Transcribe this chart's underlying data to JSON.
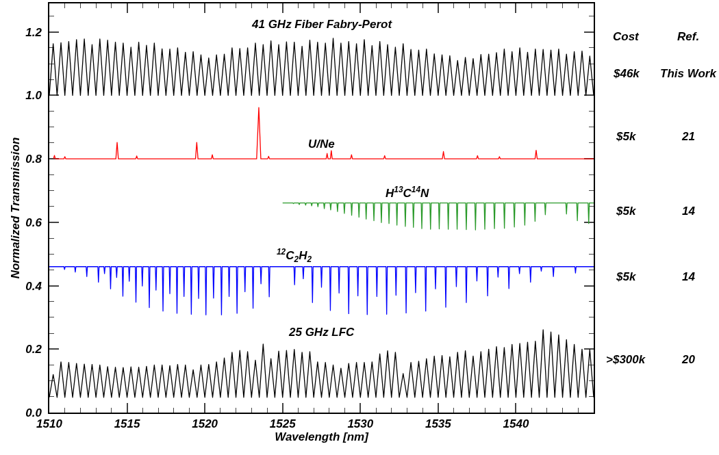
{
  "chart_data": {
    "type": "line",
    "xlabel": "Wavelength [nm]",
    "ylabel": "Normalized Transmission",
    "xlim": [
      1510,
      1545
    ],
    "ylim": [
      0,
      1.29
    ],
    "xticks": [
      1510,
      {
        "value": 1511,
        "label": null
      },
      {
        "value": 1512,
        "label": null
      },
      {
        "value": 1513,
        "label": null
      },
      {
        "value": 1514,
        "label": null
      },
      1515,
      {
        "value": 1516,
        "label": null
      },
      {
        "value": 1517,
        "label": null
      },
      {
        "value": 1518,
        "label": null
      },
      {
        "value": 1519,
        "label": null
      },
      1520,
      {
        "value": 1521,
        "label": null
      },
      {
        "value": 1522,
        "label": null
      },
      {
        "value": 1523,
        "label": null
      },
      {
        "value": 1524,
        "label": null
      },
      1525,
      {
        "value": 1526,
        "label": null
      },
      {
        "value": 1527,
        "label": null
      },
      {
        "value": 1528,
        "label": null
      },
      {
        "value": 1529,
        "label": null
      },
      1530,
      {
        "value": 1531,
        "label": null
      },
      {
        "value": 1532,
        "label": null
      },
      {
        "value": 1533,
        "label": null
      },
      {
        "value": 1534,
        "label": null
      },
      1535,
      {
        "value": 1536,
        "label": null
      },
      {
        "value": 1537,
        "label": null
      },
      {
        "value": 1538,
        "label": null
      },
      {
        "value": 1539,
        "label": null
      },
      1540,
      {
        "value": 1541,
        "label": null
      },
      {
        "value": 1542,
        "label": null
      },
      {
        "value": 1543,
        "label": null
      },
      {
        "value": 1544,
        "label": null
      }
    ],
    "yticks": [
      {
        "value": 0,
        "label": "0.0"
      },
      {
        "value": 0.05,
        "label": null
      },
      {
        "value": 0.1,
        "label": null
      },
      {
        "value": 0.15,
        "label": null
      },
      {
        "value": 0.2,
        "label": "0.2"
      },
      {
        "value": 0.25,
        "label": null
      },
      {
        "value": 0.3,
        "label": null
      },
      {
        "value": 0.35,
        "label": null
      },
      {
        "value": 0.4,
        "label": "0.4"
      },
      {
        "value": 0.45,
        "label": null
      },
      {
        "value": 0.5,
        "label": null
      },
      {
        "value": 0.55,
        "label": null
      },
      {
        "value": 0.6,
        "label": "0.6"
      },
      {
        "value": 0.65,
        "label": null
      },
      {
        "value": 0.7,
        "label": null
      },
      {
        "value": 0.75,
        "label": null
      },
      {
        "value": 0.8,
        "label": "0.8"
      },
      {
        "value": 0.85,
        "label": null
      },
      {
        "value": 0.9,
        "label": null
      },
      {
        "value": 0.95,
        "label": null
      },
      {
        "value": 1.0,
        "label": "1.0"
      },
      {
        "value": 1.05,
        "label": null
      },
      {
        "value": 1.1,
        "label": null
      },
      {
        "value": 1.15,
        "label": null
      },
      {
        "value": 1.2,
        "label": "1.2"
      },
      {
        "value": 1.25,
        "label": null
      }
    ],
    "grid": false,
    "marker": "none",
    "line_style": "solid",
    "annotations": [
      "Cost",
      "Ref.",
      "$46k",
      "This Work",
      "$5k",
      "21",
      "$5k",
      "14",
      "$5k",
      "14",
      ">$300k",
      "20"
    ],
    "x": [
      1510,
      1510.25,
      1510.5,
      1510.75,
      1511,
      1511.25,
      1511.5,
      1511.75,
      1512,
      1512.25,
      1512.5,
      1512.75,
      1513,
      1513.25,
      1513.5,
      1513.75,
      1514,
      1514.25,
      1514.5,
      1514.75,
      1515,
      1515.25,
      1515.5,
      1515.75,
      1516,
      1516.25,
      1516.5,
      1516.75,
      1517,
      1517.25,
      1517.5,
      1517.75,
      1518,
      1518.25,
      1518.5,
      1518.75,
      1519,
      1519.25,
      1519.5,
      1519.75,
      1520,
      1520.25,
      1520.5,
      1520.75,
      1521,
      1521.25,
      1521.5,
      1521.75,
      1522,
      1522.25,
      1522.5,
      1522.75,
      1523,
      1523.25,
      1523.5,
      1523.75,
      1524,
      1524.25,
      1524.5,
      1524.75,
      1525,
      1525.25,
      1525.5,
      1525.75,
      1526,
      1526.25,
      1526.5,
      1526.75,
      1527,
      1527.25,
      1527.5,
      1527.75,
      1528,
      1528.25,
      1528.5,
      1528.75,
      1529,
      1529.25,
      1529.5,
      1529.75,
      1530,
      1530.25,
      1530.5,
      1530.75,
      1531,
      1531.25,
      1531.5,
      1531.75,
      1532,
      1532.25,
      1532.5,
      1532.75,
      1533,
      1533.25,
      1533.5,
      1533.75,
      1534,
      1534.25,
      1534.5,
      1534.75,
      1535,
      1535.25,
      1535.5,
      1535.75,
      1536,
      1536.25,
      1536.5,
      1536.75,
      1537,
      1537.25,
      1537.5,
      1537.75,
      1538,
      1538.25,
      1538.5,
      1538.75,
      1539,
      1539.25,
      1539.5,
      1539.75,
      1540,
      1540.25,
      1540.5,
      1540.75,
      1541,
      1541.25,
      1541.5,
      1541.75,
      1542,
      1542.25,
      1542.5,
      1542.75,
      1543,
      1543.25,
      1543.5,
      1543.75,
      1544,
      1544.25,
      1544.5,
      1544.75,
      1545
    ],
    "series": [
      {
        "name": "41 GHz Fiber Fabry-Perot",
        "color": "#000000",
        "values": [
          1,
          1.163,
          1,
          1.166,
          1,
          1.17,
          1,
          1.176,
          1,
          1.178,
          1,
          1.16,
          1,
          1.178,
          1,
          1.174,
          1,
          1.168,
          1,
          1.165,
          1,
          1.152,
          1,
          1.168,
          1,
          1.158,
          1,
          1.165,
          1,
          1.147,
          1,
          1.146,
          1,
          1.15,
          1,
          1.136,
          1,
          1.138,
          1,
          1.128,
          1,
          1.118,
          1,
          1.128,
          1,
          1.13,
          1,
          1.15,
          1,
          1.148,
          1,
          1.15,
          1,
          1.165,
          1,
          1.16,
          1,
          1.172,
          1,
          1.16,
          1,
          1.169,
          1,
          1.168,
          1,
          1.155,
          1,
          1.174,
          1,
          1.168,
          1,
          1.165,
          1,
          1.18,
          1,
          1.165,
          1,
          1.17,
          1,
          1.163,
          1,
          1.176,
          1,
          1.157,
          1,
          1.17,
          1,
          1.16,
          1,
          1.152,
          1,
          1.163,
          1,
          1.145,
          1,
          1.143,
          1,
          1.146,
          1,
          1.131,
          1,
          1.128,
          1,
          1.125,
          1,
          1.11,
          1,
          1.12,
          1,
          1.116,
          1,
          1.129,
          1,
          1.13,
          1,
          1.135,
          1,
          1.146,
          1,
          1.138,
          1,
          1.15,
          1,
          1.136,
          1,
          1.146,
          1,
          1.145,
          1,
          1.143,
          1,
          1.146,
          1,
          1.13,
          1,
          1.138,
          1,
          1.14,
          1,
          1.124,
          1
        ]
      },
      {
        "name": "U/Ne",
        "color": "#ff0000",
        "x": [
          1510.27,
          1510.33,
          1510.39,
          1510.94,
          1511.0,
          1511.06,
          1514.28,
          1514.36,
          1514.44,
          1515.56,
          1515.62,
          1515.68,
          1519.4,
          1519.48,
          1519.56,
          1520.42,
          1520.48,
          1520.54,
          1523.33,
          1523.47,
          1523.6,
          1524.04,
          1524.1,
          1524.16,
          1527.8,
          1527.86,
          1527.92,
          1528.07,
          1528.13,
          1528.19,
          1529.37,
          1529.43,
          1529.49,
          1531.5,
          1531.56,
          1531.62,
          1535.27,
          1535.34,
          1535.41,
          1537.47,
          1537.53,
          1537.59,
          1538.88,
          1538.94,
          1539.0,
          1541.23,
          1541.3,
          1541.37,
          1545
        ],
        "values": [
          0.8,
          0.811,
          0.8,
          0.8,
          0.807,
          0.8,
          0.8,
          0.852,
          0.8,
          0.8,
          0.809,
          0.8,
          0.8,
          0.852,
          0.8,
          0.8,
          0.813,
          0.8,
          0.8,
          0.962,
          0.8,
          0.8,
          0.808,
          0.8,
          0.8,
          0.817,
          0.8,
          0.8,
          0.826,
          0.8,
          0.8,
          0.813,
          0.8,
          0.8,
          0.81,
          0.8,
          0.8,
          0.823,
          0.8,
          0.8,
          0.81,
          0.8,
          0.8,
          0.807,
          0.8,
          0.8,
          0.827,
          0.8,
          0.8
        ]
      },
      {
        "name": "H$^{13}$C$^{14}$N",
        "color": "#2a9a2a",
        "x": [
          1525,
          1525.66,
          1525.7,
          1525.74,
          1526.03,
          1526.07,
          1526.11,
          1526.44,
          1526.48,
          1526.52,
          1526.83,
          1526.87,
          1526.91,
          1527.23,
          1527.27,
          1527.31,
          1527.64,
          1527.68,
          1527.72,
          1528.05,
          1528.09,
          1528.13,
          1528.49,
          1528.53,
          1528.57,
          1528.93,
          1528.97,
          1529.01,
          1529.4,
          1529.44,
          1529.48,
          1529.87,
          1529.91,
          1529.95,
          1530.33,
          1530.37,
          1530.41,
          1530.83,
          1530.87,
          1530.91,
          1531.31,
          1531.35,
          1531.39,
          1531.8,
          1531.84,
          1531.88,
          1532.31,
          1532.35,
          1532.39,
          1532.85,
          1532.89,
          1532.93,
          1533.37,
          1533.41,
          1533.45,
          1533.91,
          1533.95,
          1533.99,
          1534.47,
          1534.51,
          1534.55,
          1535.03,
          1535.07,
          1535.11,
          1535.61,
          1535.65,
          1535.69,
          1536.18,
          1536.22,
          1536.26,
          1536.77,
          1536.81,
          1536.85,
          1537.36,
          1537.4,
          1537.44,
          1537.96,
          1538.0,
          1538.04,
          1538.58,
          1538.62,
          1538.66,
          1539.22,
          1539.26,
          1539.3,
          1539.86,
          1539.9,
          1539.94,
          1540.53,
          1540.57,
          1540.61,
          1541.19,
          1541.23,
          1541.27,
          1541.85,
          1541.89,
          1541.93,
          1543.21,
          1543.25,
          1543.29,
          1543.91,
          1543.95,
          1543.99,
          1544.64,
          1544.68,
          1544.72,
          1545
        ],
        "values": [
          0.661,
          0.661,
          0.659,
          0.661,
          0.661,
          0.656,
          0.661,
          0.661,
          0.654,
          0.661,
          0.661,
          0.652,
          0.661,
          0.661,
          0.649,
          0.661,
          0.661,
          0.643,
          0.661,
          0.661,
          0.639,
          0.661,
          0.661,
          0.634,
          0.661,
          0.661,
          0.628,
          0.661,
          0.661,
          0.622,
          0.661,
          0.661,
          0.616,
          0.661,
          0.661,
          0.61,
          0.661,
          0.661,
          0.605,
          0.661,
          0.661,
          0.599,
          0.661,
          0.661,
          0.596,
          0.661,
          0.661,
          0.591,
          0.661,
          0.661,
          0.587,
          0.661,
          0.661,
          0.584,
          0.661,
          0.661,
          0.58,
          0.661,
          0.661,
          0.578,
          0.661,
          0.661,
          0.579,
          0.661,
          0.661,
          0.578,
          0.661,
          0.661,
          0.578,
          0.661,
          0.661,
          0.577,
          0.661,
          0.661,
          0.576,
          0.661,
          0.661,
          0.578,
          0.661,
          0.661,
          0.58,
          0.661,
          0.661,
          0.581,
          0.661,
          0.661,
          0.585,
          0.661,
          0.661,
          0.591,
          0.661,
          0.661,
          0.603,
          0.661,
          0.661,
          0.624,
          0.661,
          0.661,
          0.626,
          0.661,
          0.661,
          0.605,
          0.661,
          0.661,
          0.596,
          0.661,
          0.661
        ]
      },
      {
        "name": "$^{12}$C$_{2}$H$_{2}$",
        "color": "#0000ff",
        "x": [
          1510,
          1510.94,
          1510.98,
          1511.02,
          1511.63,
          1511.67,
          1511.71,
          1512.37,
          1512.41,
          1512.45,
          1513.12,
          1513.16,
          1513.2,
          1513.51,
          1513.55,
          1513.59,
          1513.9,
          1513.94,
          1513.98,
          1514.29,
          1514.33,
          1514.37,
          1514.69,
          1514.73,
          1514.77,
          1515.1,
          1515.14,
          1515.18,
          1515.53,
          1515.57,
          1515.61,
          1515.94,
          1515.98,
          1516.02,
          1516.39,
          1516.43,
          1516.47,
          1516.82,
          1516.86,
          1516.9,
          1517.27,
          1517.31,
          1517.35,
          1517.71,
          1517.75,
          1517.79,
          1518.17,
          1518.21,
          1518.25,
          1518.62,
          1518.66,
          1518.7,
          1519.09,
          1519.13,
          1519.17,
          1519.56,
          1519.6,
          1519.64,
          1520.03,
          1520.07,
          1520.11,
          1520.52,
          1520.56,
          1520.6,
          1521.03,
          1521.07,
          1521.11,
          1521.52,
          1521.56,
          1521.6,
          1522.03,
          1522.07,
          1522.11,
          1522.54,
          1522.58,
          1522.62,
          1523.06,
          1523.1,
          1523.14,
          1523.57,
          1523.61,
          1523.65,
          1524.1,
          1524.14,
          1524.18,
          1525.73,
          1525.77,
          1525.81,
          1526.29,
          1526.33,
          1526.37,
          1526.88,
          1526.92,
          1526.96,
          1527.46,
          1527.5,
          1527.54,
          1528.03,
          1528.07,
          1528.11,
          1528.59,
          1528.63,
          1528.67,
          1529.21,
          1529.25,
          1529.29,
          1529.8,
          1529.84,
          1529.88,
          1530.4,
          1530.44,
          1530.48,
          1531.02,
          1531.06,
          1531.1,
          1531.65,
          1531.69,
          1531.73,
          1532.25,
          1532.29,
          1532.33,
          1532.9,
          1532.94,
          1532.98,
          1533.51,
          1533.55,
          1533.59,
          1534.16,
          1534.2,
          1534.24,
          1534.79,
          1534.83,
          1534.87,
          1535.45,
          1535.49,
          1535.53,
          1536.13,
          1536.17,
          1536.21,
          1536.77,
          1536.81,
          1536.85,
          1537.45,
          1537.49,
          1537.53,
          1538.14,
          1538.18,
          1538.22,
          1538.81,
          1538.85,
          1538.89,
          1539.51,
          1539.55,
          1539.59,
          1540.19,
          1540.23,
          1540.27,
          1540.9,
          1540.94,
          1540.98,
          1541.59,
          1541.63,
          1541.67,
          1542.37,
          1542.41,
          1542.45,
          1543.79,
          1543.83,
          1543.87,
          1545
        ],
        "values": [
          0.46,
          0.46,
          0.451,
          0.46,
          0.46,
          0.443,
          0.46,
          0.46,
          0.429,
          0.46,
          0.46,
          0.411,
          0.46,
          0.46,
          0.438,
          0.46,
          0.46,
          0.39,
          0.46,
          0.46,
          0.426,
          0.46,
          0.46,
          0.367,
          0.46,
          0.46,
          0.414,
          0.46,
          0.46,
          0.348,
          0.46,
          0.46,
          0.399,
          0.46,
          0.46,
          0.331,
          0.46,
          0.46,
          0.386,
          0.46,
          0.46,
          0.32,
          0.46,
          0.46,
          0.375,
          0.46,
          0.46,
          0.313,
          0.46,
          0.46,
          0.366,
          0.46,
          0.46,
          0.31,
          0.46,
          0.46,
          0.36,
          0.46,
          0.46,
          0.308,
          0.46,
          0.46,
          0.361,
          0.46,
          0.46,
          0.308,
          0.46,
          0.46,
          0.366,
          0.46,
          0.46,
          0.313,
          0.46,
          0.46,
          0.381,
          0.46,
          0.46,
          0.329,
          0.46,
          0.46,
          0.406,
          0.46,
          0.46,
          0.365,
          0.46,
          0.46,
          0.403,
          0.46,
          0.46,
          0.422,
          0.46,
          0.46,
          0.347,
          0.46,
          0.46,
          0.395,
          0.46,
          0.46,
          0.322,
          0.46,
          0.46,
          0.377,
          0.46,
          0.46,
          0.312,
          0.46,
          0.46,
          0.368,
          0.46,
          0.46,
          0.309,
          0.46,
          0.46,
          0.366,
          0.46,
          0.46,
          0.31,
          0.46,
          0.46,
          0.37,
          0.46,
          0.46,
          0.314,
          0.46,
          0.46,
          0.378,
          0.46,
          0.46,
          0.32,
          0.46,
          0.46,
          0.39,
          0.46,
          0.46,
          0.332,
          0.46,
          0.46,
          0.397,
          0.46,
          0.46,
          0.347,
          0.46,
          0.46,
          0.415,
          0.46,
          0.46,
          0.368,
          0.46,
          0.46,
          0.427,
          0.46,
          0.46,
          0.391,
          0.46,
          0.46,
          0.438,
          0.46,
          0.46,
          0.411,
          0.46,
          0.46,
          0.446,
          0.46,
          0.46,
          0.429,
          0.46,
          0.46,
          0.44,
          0.46,
          0.46
        ]
      },
      {
        "name": "25 GHz LFC",
        "color": "#000000",
        "values": [
          0.048,
          0.12,
          0.048,
          0.16,
          0.048,
          0.158,
          0.048,
          0.155,
          0.048,
          0.153,
          0.048,
          0.152,
          0.048,
          0.15,
          0.048,
          0.145,
          0.048,
          0.143,
          0.048,
          0.142,
          0.048,
          0.144,
          0.048,
          0.143,
          0.048,
          0.146,
          0.048,
          0.15,
          0.048,
          0.15,
          0.048,
          0.148,
          0.048,
          0.152,
          0.048,
          0.15,
          0.048,
          0.135,
          0.048,
          0.15,
          0.048,
          0.152,
          0.048,
          0.16,
          0.048,
          0.172,
          0.048,
          0.19,
          0.048,
          0.196,
          0.048,
          0.192,
          0.048,
          0.165,
          0.048,
          0.216,
          0.048,
          0.17,
          0.048,
          0.194,
          0.048,
          0.196,
          0.048,
          0.199,
          0.048,
          0.19,
          0.048,
          0.192,
          0.048,
          0.16,
          0.048,
          0.158,
          0.048,
          0.15,
          0.048,
          0.14,
          0.048,
          0.155,
          0.048,
          0.158,
          0.048,
          0.158,
          0.048,
          0.16,
          0.048,
          0.185,
          0.048,
          0.195,
          0.048,
          0.19,
          0.048,
          0.123,
          0.048,
          0.158,
          0.048,
          0.162,
          0.048,
          0.17,
          0.048,
          0.178,
          0.048,
          0.18,
          0.048,
          0.176,
          0.048,
          0.19,
          0.048,
          0.195,
          0.048,
          0.178,
          0.048,
          0.192,
          0.048,
          0.2,
          0.048,
          0.208,
          0.048,
          0.205,
          0.048,
          0.215,
          0.048,
          0.218,
          0.048,
          0.222,
          0.048,
          0.225,
          0.048,
          0.261,
          0.048,
          0.254,
          0.048,
          0.245,
          0.048,
          0.23,
          0.048,
          0.215,
          0.048,
          0.2,
          0.048,
          0.199,
          0.048
        ]
      }
    ]
  }
}
